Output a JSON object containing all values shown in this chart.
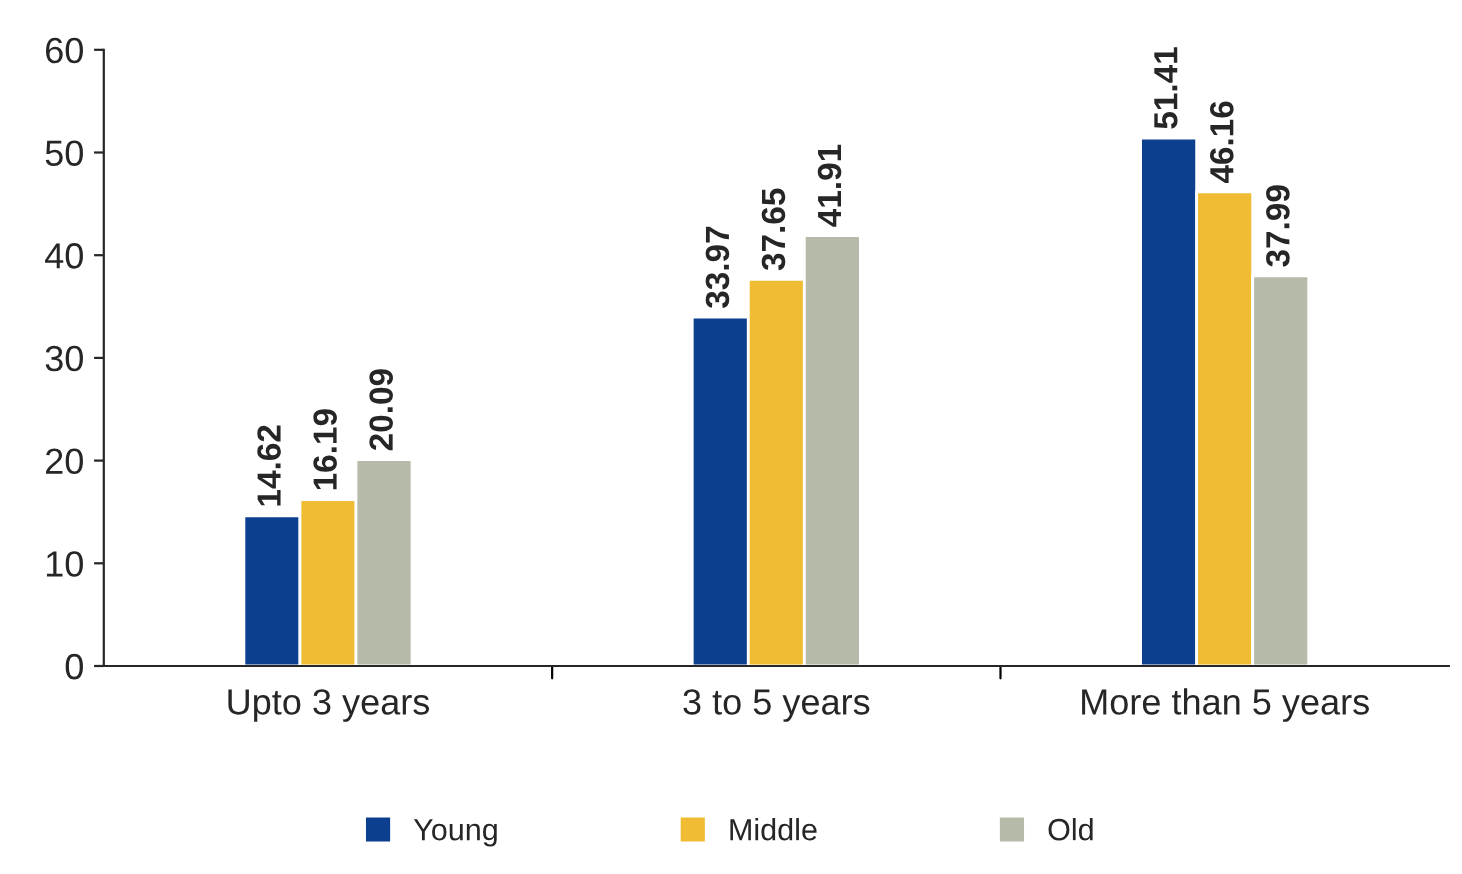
{
  "chart_data": {
    "type": "bar",
    "categories": [
      "Upto 3 years",
      "3 to 5 years",
      "More than 5 years"
    ],
    "series": [
      {
        "name": "Young",
        "color": "#0d3f8f",
        "values": [
          14.62,
          33.97,
          51.41
        ]
      },
      {
        "name": "Middle",
        "color": "#f0bc34",
        "values": [
          16.19,
          37.65,
          46.16
        ]
      },
      {
        "name": "Old",
        "color": "#b5bba8",
        "values": [
          20.09,
          41.91,
          37.99
        ]
      }
    ],
    "ylim": [
      0,
      60
    ],
    "yticks": [
      0,
      10,
      20,
      30,
      40,
      50,
      60
    ],
    "grid": false,
    "legend": "bottom",
    "data_labels": true
  }
}
